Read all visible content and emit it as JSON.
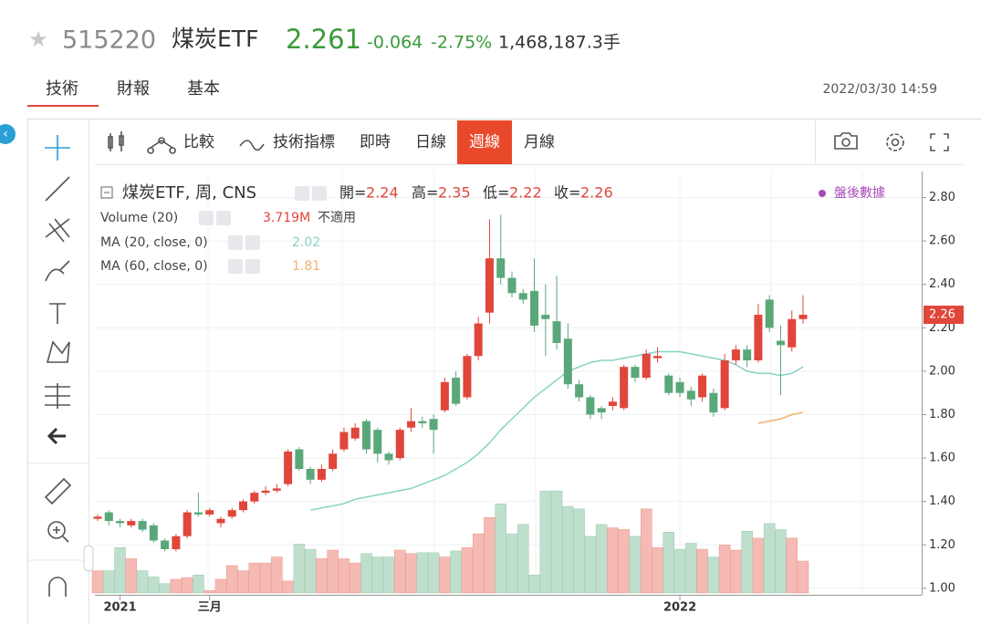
{
  "header": {
    "code": "515220",
    "name": "煤炭ETF",
    "price": "2.261",
    "change": "-0.064",
    "change_pct": "-2.75%",
    "volume": "1,468,187.3手"
  },
  "tabs": [
    "技術",
    "財報",
    "基本"
  ],
  "timestamp": "2022/03/30 14:59",
  "toolbar": {
    "items": [
      "比較",
      "技術指標",
      "即時",
      "日線",
      "週線",
      "月線"
    ],
    "active": 4
  },
  "chart_data": {
    "type": "candlestick",
    "title": "煤炭ETF, 周, CNS",
    "ohlc_labels": [
      "開=",
      "高=",
      "低=",
      "收="
    ],
    "after_hours": "盤後數據",
    "up_color": "#e0463a",
    "down_color": "#5aa87a",
    "categories": [
      null,
      null,
      "2021",
      null,
      null,
      null,
      null,
      null,
      null,
      null,
      "三月",
      null,
      null,
      null,
      null,
      null,
      null,
      null,
      null,
      null,
      null,
      null,
      null,
      null,
      null,
      null,
      null,
      null,
      null,
      null,
      null,
      null,
      null,
      null,
      null,
      null,
      null,
      null,
      null,
      null,
      null,
      null,
      null,
      null,
      null,
      null,
      null,
      null,
      null,
      null,
      null,
      null,
      "2022",
      null,
      null,
      null,
      null,
      null,
      null,
      null,
      null,
      null,
      null,
      null
    ],
    "open": [
      1.32,
      1.35,
      1.31,
      1.29,
      1.31,
      1.29,
      1.22,
      1.18,
      1.24,
      1.35,
      1.34,
      1.3,
      1.33,
      1.36,
      1.4,
      1.44,
      1.45,
      1.48,
      1.64,
      1.55,
      1.5,
      1.55,
      1.64,
      1.69,
      1.77,
      1.73,
      1.62,
      1.6,
      1.74,
      1.77,
      1.78,
      1.82,
      1.97,
      1.88,
      2.07,
      2.27,
      2.52,
      2.43,
      2.36,
      2.37,
      2.26,
      2.23,
      2.15,
      1.94,
      1.88,
      1.83,
      1.84,
      1.83,
      2.02,
      1.97,
      2.06,
      1.98,
      1.95,
      1.91,
      1.88,
      1.9,
      1.83,
      2.05,
      2.1,
      2.05,
      2.33,
      2.14,
      2.11,
      2.24
    ],
    "high": [
      1.34,
      1.36,
      1.32,
      1.32,
      1.32,
      1.3,
      1.23,
      1.25,
      1.36,
      1.44,
      1.37,
      1.33,
      1.37,
      1.41,
      1.45,
      1.47,
      1.48,
      1.64,
      1.65,
      1.56,
      1.57,
      1.64,
      1.74,
      1.76,
      1.78,
      1.74,
      1.63,
      1.74,
      1.83,
      1.79,
      1.8,
      1.97,
      2.0,
      2.08,
      2.25,
      2.7,
      2.72,
      2.46,
      2.38,
      2.52,
      2.4,
      2.44,
      2.22,
      1.96,
      1.89,
      1.84,
      1.88,
      2.03,
      2.03,
      2.1,
      2.11,
      1.99,
      1.97,
      1.93,
      1.99,
      1.92,
      2.08,
      2.12,
      2.12,
      2.31,
      2.35,
      2.21,
      2.28,
      2.35
    ],
    "low": [
      1.31,
      1.29,
      1.28,
      1.28,
      1.26,
      1.21,
      1.17,
      1.17,
      1.23,
      1.33,
      1.33,
      1.28,
      1.32,
      1.35,
      1.39,
      1.43,
      1.44,
      1.47,
      1.54,
      1.48,
      1.49,
      1.54,
      1.63,
      1.68,
      1.62,
      1.58,
      1.57,
      1.59,
      1.72,
      1.74,
      1.62,
      1.81,
      1.84,
      1.87,
      2.05,
      2.22,
      2.4,
      2.34,
      2.31,
      2.18,
      2.07,
      2.1,
      1.92,
      1.86,
      1.78,
      1.78,
      1.82,
      1.82,
      1.95,
      1.96,
      2.04,
      1.89,
      1.88,
      1.84,
      1.86,
      1.79,
      1.82,
      2.03,
      2.02,
      2.04,
      2.18,
      1.89,
      2.09,
      2.22
    ],
    "close": [
      1.33,
      1.31,
      1.3,
      1.31,
      1.27,
      1.22,
      1.18,
      1.24,
      1.35,
      1.34,
      1.36,
      1.32,
      1.36,
      1.4,
      1.44,
      1.45,
      1.46,
      1.63,
      1.55,
      1.5,
      1.55,
      1.62,
      1.72,
      1.74,
      1.64,
      1.62,
      1.59,
      1.73,
      1.77,
      1.76,
      1.73,
      1.95,
      1.85,
      2.07,
      2.22,
      2.52,
      2.43,
      2.36,
      2.33,
      2.21,
      2.24,
      2.13,
      1.94,
      1.88,
      1.8,
      1.81,
      1.86,
      2.02,
      1.97,
      2.08,
      2.07,
      1.9,
      1.9,
      1.87,
      1.98,
      1.81,
      2.05,
      2.1,
      2.05,
      2.26,
      2.2,
      2.12,
      2.24,
      2.26
    ],
    "volume": {
      "name": "Volume (20)",
      "note": "不適用",
      "values": [
        2.6,
        2.6,
        5.3,
        4.0,
        2.6,
        1.9,
        1.1,
        1.6,
        1.8,
        2.1,
        0.3,
        1.6,
        3.2,
        2.6,
        3.5,
        3.5,
        4.2,
        1.4,
        5.7,
        5.1,
        4.0,
        5.0,
        4.0,
        3.5,
        4.6,
        4.2,
        4.2,
        5.0,
        4.6,
        4.7,
        4.7,
        4.2,
        4.9,
        5.3,
        6.9,
        8.8,
        10.4,
        6.9,
        8.0,
        2.1,
        11.9,
        11.9,
        10.1,
        9.8,
        6.6,
        8.0,
        7.6,
        7.4,
        6.6,
        9.8,
        5.3,
        7.1,
        5.1,
        5.8,
        5.1,
        4.2,
        5.6,
        5.0,
        7.2,
        6.4,
        8.1,
        7.4,
        6.4,
        3.719
      ],
      "value_labels": [
        null,
        null,
        null,
        null,
        null,
        null,
        null,
        null,
        null,
        null,
        null,
        null,
        null,
        null,
        null,
        null,
        null,
        null,
        null,
        null,
        null,
        null,
        null,
        null,
        null,
        null,
        null,
        null,
        null,
        null,
        null,
        null,
        null,
        null,
        null,
        null,
        null,
        null,
        null,
        null,
        null,
        null,
        null,
        null,
        null,
        null,
        null,
        null,
        null,
        null,
        null,
        null,
        null,
        null,
        null,
        null,
        null,
        null,
        null,
        null,
        null,
        null,
        null,
        "3.719M"
      ]
    },
    "series": [
      {
        "name": "MA (20, close, 0)",
        "color": "#86d3c3",
        "values": [
          null,
          null,
          null,
          null,
          null,
          null,
          null,
          null,
          null,
          null,
          null,
          null,
          null,
          null,
          null,
          null,
          null,
          null,
          null,
          1.36,
          1.37,
          1.38,
          1.39,
          1.41,
          1.42,
          1.43,
          1.44,
          1.45,
          1.46,
          1.48,
          1.5,
          1.52,
          1.55,
          1.58,
          1.62,
          1.67,
          1.73,
          1.78,
          1.83,
          1.88,
          1.92,
          1.96,
          2.0,
          2.02,
          2.04,
          2.05,
          2.05,
          2.06,
          2.07,
          2.08,
          2.09,
          2.09,
          2.09,
          2.08,
          2.07,
          2.06,
          2.05,
          2.03,
          2.0,
          1.99,
          1.99,
          1.98,
          1.99,
          2.02
        ]
      },
      {
        "name": "MA (60, close, 0)",
        "color": "#f5b06e",
        "values": [
          null,
          null,
          null,
          null,
          null,
          null,
          null,
          null,
          null,
          null,
          null,
          null,
          null,
          null,
          null,
          null,
          null,
          null,
          null,
          null,
          null,
          null,
          null,
          null,
          null,
          null,
          null,
          null,
          null,
          null,
          null,
          null,
          null,
          null,
          null,
          null,
          null,
          null,
          null,
          null,
          null,
          null,
          null,
          null,
          null,
          null,
          null,
          null,
          null,
          null,
          null,
          null,
          null,
          null,
          null,
          null,
          null,
          null,
          null,
          1.76,
          1.77,
          1.78,
          1.8,
          1.81
        ]
      }
    ],
    "ylim": [
      0.97,
      2.92
    ],
    "yticks": [
      {
        "value": 1,
        "label": "1.00"
      },
      {
        "value": 1.2,
        "label": "1.20"
      },
      {
        "value": 1.4,
        "label": "1.40"
      },
      {
        "value": 1.6,
        "label": "1.60"
      },
      {
        "value": 1.8,
        "label": "1.80"
      },
      {
        "value": 2,
        "label": "2.00"
      },
      {
        "value": 2.2,
        "label": "2.20"
      },
      {
        "value": 2.4,
        "label": "2.40"
      },
      {
        "value": 2.6,
        "label": "2.60"
      },
      {
        "value": 2.8,
        "label": "2.80"
      }
    ],
    "grid": true
  }
}
